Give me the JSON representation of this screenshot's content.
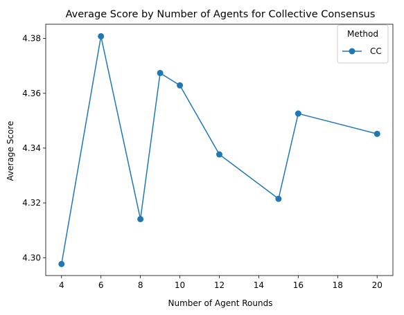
{
  "chart_data": {
    "type": "line",
    "title": "Average Score by Number of Agents for Collective Consensus",
    "xlabel": "Number of Agent Rounds",
    "ylabel": "Average Score",
    "xlim": [
      3.2,
      20.8
    ],
    "ylim": [
      4.2935,
      4.3852
    ],
    "xticks": [
      4,
      6,
      8,
      10,
      12,
      14,
      16,
      18,
      20
    ],
    "xtick_labels": [
      "4",
      "6",
      "8",
      "10",
      "12",
      "14",
      "16",
      "18",
      "20"
    ],
    "yticks": [
      4.3,
      4.32,
      4.34,
      4.36,
      4.38
    ],
    "ytick_labels": [
      "4.30",
      "4.32",
      "4.34",
      "4.36",
      "4.38"
    ],
    "grid": false,
    "legend": {
      "title": "Method",
      "placement": "top-right"
    },
    "series": [
      {
        "name": "CC",
        "color": "#1f77b4",
        "marker": "circle",
        "x": [
          4,
          6,
          8,
          9,
          10,
          12,
          15,
          16,
          20
        ],
        "y": [
          4.2977,
          4.3808,
          4.3141,
          4.3674,
          4.3629,
          4.3377,
          4.3215,
          4.3526,
          4.3452
        ]
      }
    ]
  }
}
